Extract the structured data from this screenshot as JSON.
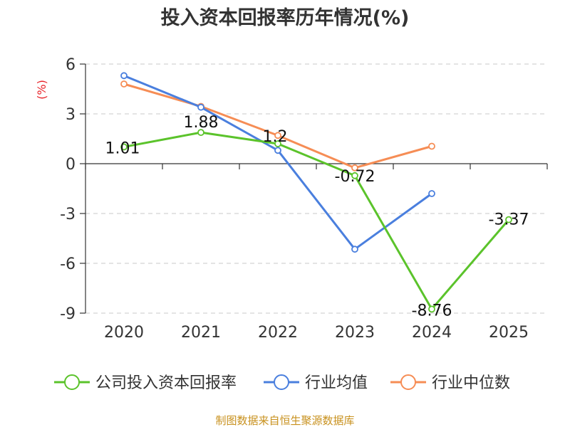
{
  "chart_data": {
    "type": "line",
    "title": "投入资本回报率历年情况(%)",
    "ylabel": "(%)",
    "xlabel": "",
    "categories": [
      "2020",
      "2021",
      "2022",
      "2023",
      "2024",
      "2025"
    ],
    "yticks": [
      "6",
      "3",
      "0",
      "-3",
      "-6",
      "-9"
    ],
    "ylim": [
      -9,
      6
    ],
    "grid": true,
    "legend_position": "bottom",
    "series": [
      {
        "name": "公司投入资本回报率",
        "color": "#5bc32b",
        "values": [
          1.01,
          1.88,
          1.2,
          -0.72,
          -8.76,
          -3.37
        ],
        "labels": [
          "1.01",
          "1.88",
          "1.2",
          "-0.72",
          "-8.76",
          "-3.37"
        ]
      },
      {
        "name": "行业均值",
        "color": "#4a7fde",
        "values": [
          5.3,
          3.4,
          0.8,
          -5.15,
          -1.8,
          null
        ]
      },
      {
        "name": "行业中位数",
        "color": "#f68d55",
        "values": [
          4.8,
          3.45,
          1.7,
          -0.25,
          1.05,
          null
        ]
      }
    ]
  },
  "source": "制图数据来自恒生聚源数据库"
}
